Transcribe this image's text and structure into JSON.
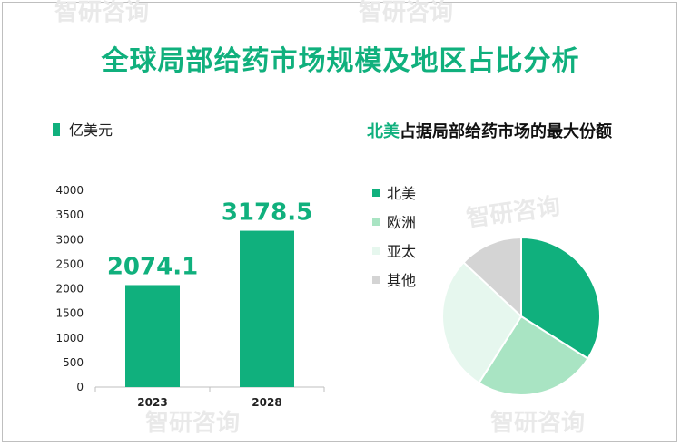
{
  "title": "全球局部给药市场规模及地区占比分析",
  "bar_legend_label": "亿美元",
  "pie_title_highlight": "北美",
  "pie_title_rest": "占据局部给药市场的最大份额",
  "watermark": "智研咨询",
  "colors": {
    "accent": "#10b07d",
    "pie": [
      "#10b07d",
      "#a9e4c3",
      "#e6f7ee",
      "#d4d4d4"
    ]
  },
  "chart_data": [
    {
      "type": "bar",
      "categories": [
        "2023",
        "2028"
      ],
      "values": [
        2074.1,
        3178.5
      ],
      "value_labels": [
        "2074.1",
        "3178.5"
      ],
      "ylim": [
        0,
        4000
      ],
      "yticks": [
        "0",
        "500",
        "1000",
        "1500",
        "2000",
        "2500",
        "3000",
        "3500",
        "4000"
      ],
      "ylabel": "亿美元",
      "grid": false
    },
    {
      "type": "pie",
      "labels": [
        "北美",
        "欧洲",
        "亚太",
        "其他"
      ],
      "values": [
        34,
        25,
        28,
        13
      ],
      "title": "北美占据局部给药市场的最大份额"
    }
  ]
}
